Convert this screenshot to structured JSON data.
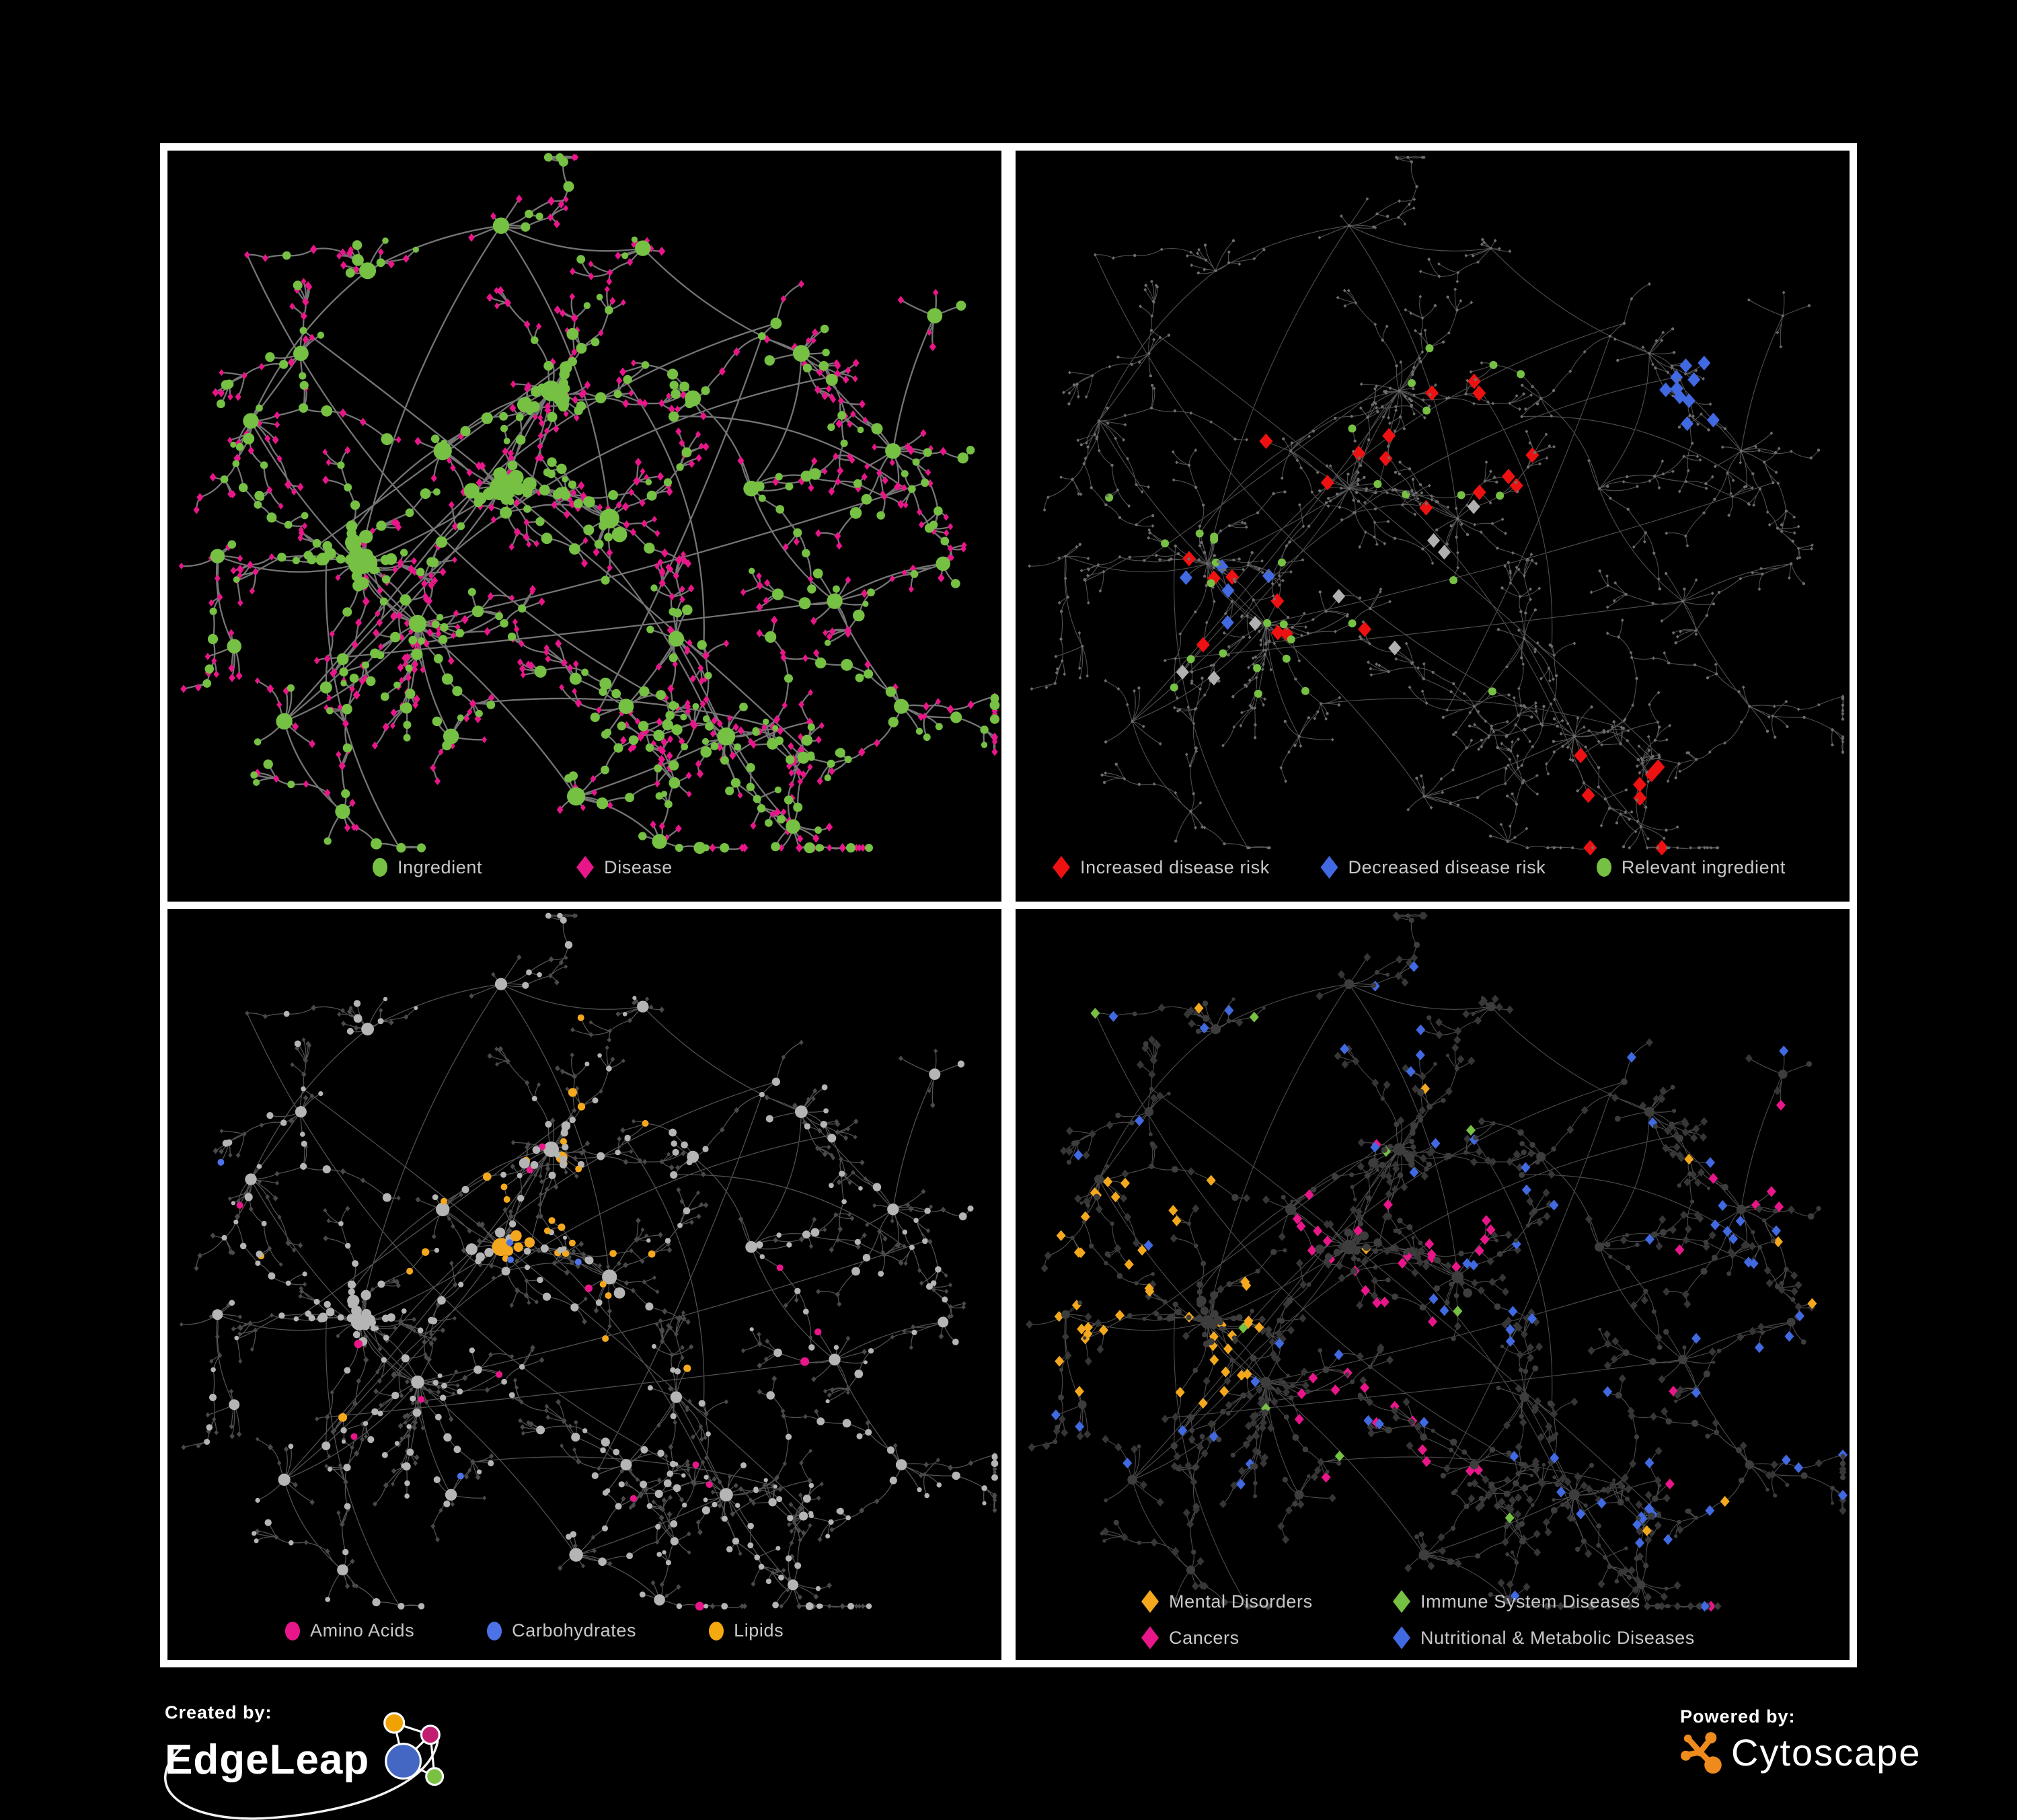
{
  "panels": [
    {
      "id": "ingredients-diseases",
      "legend": [
        {
          "label": "Ingredient",
          "shape": "circle",
          "color": "#76C043"
        },
        {
          "label": "Disease",
          "shape": "diamond",
          "color": "#E9168A"
        }
      ]
    },
    {
      "id": "disease-risk",
      "legend": [
        {
          "label": "Increased disease risk",
          "shape": "diamond",
          "color": "#EE1111"
        },
        {
          "label": "Decreased disease risk",
          "shape": "diamond",
          "color": "#4169E1"
        },
        {
          "label": "Relevant ingredient",
          "shape": "circle",
          "color": "#76C043"
        }
      ]
    },
    {
      "id": "nutrient-classes",
      "legend": [
        {
          "label": "Amino Acids",
          "shape": "circle",
          "color": "#E9168A"
        },
        {
          "label": "Carbohydrates",
          "shape": "circle",
          "color": "#4D72E8"
        },
        {
          "label": "Lipids",
          "shape": "circle",
          "color": "#F4A90F"
        }
      ]
    },
    {
      "id": "disease-classes",
      "legend": [
        {
          "label": "Mental Disorders",
          "shape": "diamond",
          "color": "#F4A81D"
        },
        {
          "label": "Immune System Diseases",
          "shape": "diamond",
          "color": "#76C043"
        },
        {
          "label": "Cancers",
          "shape": "diamond",
          "color": "#E9168A"
        },
        {
          "label": "Nutritional & Metabolic Diseases",
          "shape": "diamond",
          "color": "#4169E1"
        }
      ]
    }
  ],
  "footer": {
    "created_by": "Created by:",
    "created_brand": "EdgeLeap",
    "powered_by": "Powered by:",
    "powered_brand": "Cytoscape"
  },
  "palette": {
    "background": "#000000",
    "frame": "#ffffff",
    "legend_text": "#c8c8c8",
    "green": "#76C043",
    "pink": "#E9168A",
    "red": "#EE1111",
    "blue": "#4169E1",
    "blue2": "#4D72E8",
    "orange": "#F4A81D",
    "gray_highlight": "#B0B0B0",
    "dot_gray": "#6E6E6E",
    "light_gray_node": "#B5B5B5",
    "dark_diamond_p3": "#4A4A4A",
    "dark_circle_p4": "#3D3D3D",
    "dark_diamond_p4": "#363636",
    "edge_p1": "#8F8F8F",
    "edge_p2": "#646464",
    "edge_p3": "#6F6F6F",
    "edge_p4": "#606060",
    "cytoscape_orange": "#EF8B1D",
    "edgeleap_blue": "#4467C4",
    "edgeleap_orange": "#F0A202",
    "edgeleap_magenta": "#C21E71",
    "edgeleap_green": "#7AC143"
  },
  "network": {
    "seed": 1337
  }
}
